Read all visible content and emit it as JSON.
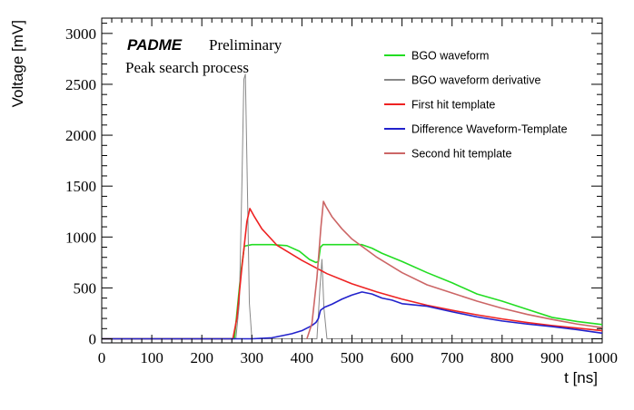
{
  "chart_data": {
    "type": "line",
    "xlabel": "t [ns]",
    "ylabel": "Voltage [mV]",
    "xlim": [
      0,
      1000
    ],
    "ylim": [
      -40,
      3150
    ],
    "x_ticks": [
      0,
      100,
      200,
      300,
      400,
      500,
      600,
      700,
      800,
      900,
      1000
    ],
    "y_ticks": [
      0,
      500,
      1000,
      1500,
      2000,
      2500,
      3000
    ],
    "grid": false,
    "legend_position": "top-right",
    "annotations": {
      "brand": "PADME",
      "status": "Preliminary",
      "subtitle": "Peak search process"
    },
    "series": [
      {
        "name": "BGO waveform",
        "color": "#22dd22",
        "points": [
          [
            0,
            0
          ],
          [
            265,
            0
          ],
          [
            270,
            250
          ],
          [
            278,
            650
          ],
          [
            285,
            910
          ],
          [
            300,
            925
          ],
          [
            340,
            925
          ],
          [
            370,
            915
          ],
          [
            395,
            860
          ],
          [
            415,
            780
          ],
          [
            428,
            750
          ],
          [
            433,
            760
          ],
          [
            437,
            900
          ],
          [
            442,
            925
          ],
          [
            520,
            925
          ],
          [
            540,
            890
          ],
          [
            560,
            840
          ],
          [
            600,
            760
          ],
          [
            650,
            650
          ],
          [
            700,
            550
          ],
          [
            750,
            440
          ],
          [
            800,
            370
          ],
          [
            850,
            290
          ],
          [
            900,
            210
          ],
          [
            950,
            170
          ],
          [
            1000,
            140
          ]
        ]
      },
      {
        "name": "BGO waveform derivative",
        "color": "#888888",
        "points": [
          [
            0,
            0
          ],
          [
            268,
            0
          ],
          [
            275,
            350
          ],
          [
            280,
            1500
          ],
          [
            284,
            2550
          ],
          [
            287,
            2600
          ],
          [
            291,
            1500
          ],
          [
            295,
            350
          ],
          [
            300,
            0
          ],
          [
            430,
            0
          ],
          [
            436,
            500
          ],
          [
            440,
            780
          ],
          [
            444,
            300
          ],
          [
            450,
            0
          ],
          [
            1000,
            0
          ]
        ]
      },
      {
        "name": "First hit template",
        "color": "#ee2222",
        "points": [
          [
            0,
            0
          ],
          [
            262,
            0
          ],
          [
            270,
            200
          ],
          [
            280,
            700
          ],
          [
            290,
            1150
          ],
          [
            296,
            1280
          ],
          [
            305,
            1200
          ],
          [
            320,
            1080
          ],
          [
            350,
            920
          ],
          [
            400,
            770
          ],
          [
            450,
            640
          ],
          [
            500,
            540
          ],
          [
            550,
            460
          ],
          [
            600,
            390
          ],
          [
            650,
            330
          ],
          [
            700,
            280
          ],
          [
            750,
            235
          ],
          [
            800,
            195
          ],
          [
            850,
            160
          ],
          [
            900,
            130
          ],
          [
            950,
            105
          ],
          [
            1000,
            80
          ]
        ]
      },
      {
        "name": "Difference Waveform-Template",
        "color": "#2222cc",
        "points": [
          [
            0,
            0
          ],
          [
            300,
            0
          ],
          [
            340,
            10
          ],
          [
            360,
            30
          ],
          [
            380,
            50
          ],
          [
            400,
            80
          ],
          [
            420,
            130
          ],
          [
            428,
            160
          ],
          [
            433,
            200
          ],
          [
            437,
            280
          ],
          [
            445,
            310
          ],
          [
            460,
            340
          ],
          [
            480,
            390
          ],
          [
            500,
            430
          ],
          [
            520,
            460
          ],
          [
            540,
            440
          ],
          [
            560,
            400
          ],
          [
            580,
            380
          ],
          [
            600,
            345
          ],
          [
            650,
            320
          ],
          [
            700,
            265
          ],
          [
            750,
            215
          ],
          [
            800,
            175
          ],
          [
            850,
            145
          ],
          [
            900,
            120
          ],
          [
            950,
            90
          ],
          [
            1000,
            55
          ]
        ]
      },
      {
        "name": "Second hit template",
        "color": "#cc6666",
        "points": [
          [
            410,
            0
          ],
          [
            420,
            150
          ],
          [
            430,
            600
          ],
          [
            438,
            1100
          ],
          [
            443,
            1350
          ],
          [
            448,
            1300
          ],
          [
            460,
            1200
          ],
          [
            480,
            1080
          ],
          [
            500,
            980
          ],
          [
            550,
            800
          ],
          [
            600,
            650
          ],
          [
            650,
            530
          ],
          [
            700,
            450
          ],
          [
            750,
            370
          ],
          [
            800,
            300
          ],
          [
            850,
            240
          ],
          [
            900,
            190
          ],
          [
            950,
            145
          ],
          [
            1000,
            110
          ]
        ]
      }
    ]
  }
}
